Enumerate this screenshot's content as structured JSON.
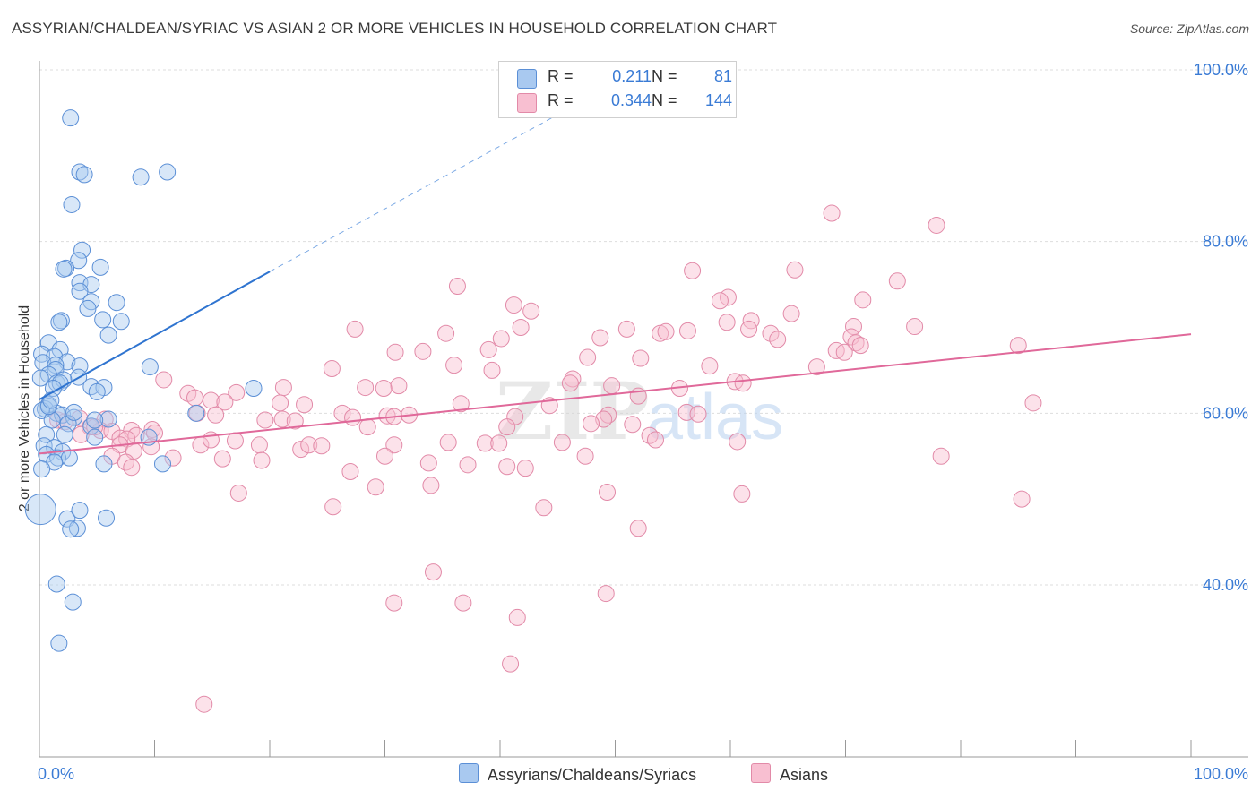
{
  "header": {
    "title": "ASSYRIAN/CHALDEAN/SYRIAC VS ASIAN 2 OR MORE VEHICLES IN HOUSEHOLD CORRELATION CHART",
    "source": "Source: ZipAtlas.com"
  },
  "watermark": {
    "zip": "ZIP",
    "atlas": "atlas"
  },
  "legend": {
    "r_label": "R =",
    "n_label": "N =",
    "series": [
      {
        "r": "0.211",
        "n": "81",
        "color": "#a9c9f0",
        "border": "#5b8fd6"
      },
      {
        "r": "0.344",
        "n": "144",
        "color": "#f8bfd1",
        "border": "#e28aa8"
      }
    ]
  },
  "bottom_legend": [
    {
      "label": "Assyrians/Chaldeans/Syriacs",
      "color": "#a9c9f0",
      "border": "#5b8fd6"
    },
    {
      "label": "Asians",
      "color": "#f8bfd1",
      "border": "#e28aa8"
    }
  ],
  "chart_data": {
    "type": "scatter",
    "title": "ASSYRIAN/CHALDEAN/SYRIAC VS ASIAN 2 OR MORE VEHICLES IN HOUSEHOLD CORRELATION CHART",
    "xlabel": "",
    "ylabel": "2 or more Vehicles in Household",
    "xlim": [
      0,
      100
    ],
    "ylim": [
      20,
      100
    ],
    "x_tick_labels": [
      "0.0%",
      "100.0%"
    ],
    "y_ticks": [
      40,
      60,
      80,
      100
    ],
    "y_tick_labels": [
      "40.0%",
      "60.0%",
      "80.0%",
      "100.0%"
    ],
    "grid": true,
    "legend_position": "top-center",
    "colors": {
      "blue_line": "#2f74d0",
      "pink_line": "#e0699a",
      "tick_label": "#3a7bd5"
    },
    "series": [
      {
        "name": "Assyrians/Chaldeans/Syriacs",
        "r": 0.211,
        "n": 81,
        "trend": {
          "x": [
            0,
            20
          ],
          "y": [
            61.6,
            76.5
          ],
          "dashed_to": [
            47.5,
            96.6
          ]
        },
        "points": [
          [
            2.7,
            94.4
          ],
          [
            3.5,
            88.1
          ],
          [
            11.1,
            88.1
          ],
          [
            3.9,
            87.8
          ],
          [
            8.8,
            87.5
          ],
          [
            2.8,
            84.3
          ],
          [
            3.7,
            79.0
          ],
          [
            3.4,
            77.8
          ],
          [
            2.3,
            76.9
          ],
          [
            2.1,
            76.8
          ],
          [
            5.3,
            77.0
          ],
          [
            3.5,
            75.2
          ],
          [
            4.5,
            75.0
          ],
          [
            3.5,
            74.2
          ],
          [
            4.5,
            73.0
          ],
          [
            6.7,
            72.9
          ],
          [
            4.2,
            72.2
          ],
          [
            5.5,
            70.9
          ],
          [
            7.1,
            70.7
          ],
          [
            1.9,
            70.8
          ],
          [
            1.7,
            70.6
          ],
          [
            6.0,
            69.1
          ],
          [
            0.8,
            68.2
          ],
          [
            1.8,
            67.4
          ],
          [
            0.2,
            66.9
          ],
          [
            1.3,
            66.6
          ],
          [
            0.3,
            65.9
          ],
          [
            2.4,
            66.0
          ],
          [
            1.4,
            65.6
          ],
          [
            3.5,
            65.5
          ],
          [
            1.4,
            65.1
          ],
          [
            0.8,
            64.5
          ],
          [
            3.4,
            64.2
          ],
          [
            0.1,
            64.1
          ],
          [
            1.5,
            63.5
          ],
          [
            2.1,
            63.9
          ],
          [
            1.8,
            63.5
          ],
          [
            1.2,
            62.9
          ],
          [
            4.5,
            63.1
          ],
          [
            5.6,
            63.0
          ],
          [
            5.0,
            62.5
          ],
          [
            9.6,
            65.4
          ],
          [
            18.6,
            62.9
          ],
          [
            0.8,
            61.0
          ],
          [
            0.5,
            60.5
          ],
          [
            1.5,
            60.0
          ],
          [
            0.2,
            60.3
          ],
          [
            2.0,
            59.8
          ],
          [
            3.0,
            59.5
          ],
          [
            1.1,
            59.2
          ],
          [
            2.5,
            58.8
          ],
          [
            4.5,
            58.5
          ],
          [
            6.0,
            59.3
          ],
          [
            4.8,
            59.2
          ],
          [
            2.2,
            57.5
          ],
          [
            4.8,
            57.2
          ],
          [
            9.5,
            57.2
          ],
          [
            13.6,
            60.0
          ],
          [
            0.6,
            57.5
          ],
          [
            0.4,
            56.2
          ],
          [
            1.3,
            56.0
          ],
          [
            2.0,
            55.5
          ],
          [
            0.6,
            55.2
          ],
          [
            1.6,
            54.8
          ],
          [
            2.6,
            54.8
          ],
          [
            1.3,
            54.3
          ],
          [
            5.6,
            54.1
          ],
          [
            10.7,
            54.1
          ],
          [
            0.2,
            53.5
          ],
          [
            0.1,
            48.8
          ],
          [
            2.4,
            47.7
          ],
          [
            5.8,
            47.8
          ],
          [
            3.3,
            46.6
          ],
          [
            2.7,
            46.5
          ],
          [
            3.5,
            48.7
          ],
          [
            1.5,
            40.1
          ],
          [
            2.9,
            38.0
          ],
          [
            1.7,
            33.2
          ],
          [
            0.8,
            60.8
          ],
          [
            3.0,
            60.1
          ],
          [
            1.0,
            61.5
          ]
        ]
      },
      {
        "name": "Asians",
        "r": 0.344,
        "n": 144,
        "trend": {
          "x": [
            0,
            100
          ],
          "y": [
            55.3,
            69.2
          ]
        },
        "points": [
          [
            68.8,
            83.3
          ],
          [
            77.9,
            81.9
          ],
          [
            56.7,
            76.6
          ],
          [
            65.6,
            76.7
          ],
          [
            74.5,
            75.4
          ],
          [
            36.3,
            74.8
          ],
          [
            71.5,
            73.2
          ],
          [
            59.8,
            73.5
          ],
          [
            65.3,
            71.6
          ],
          [
            59.1,
            73.1
          ],
          [
            41.2,
            72.6
          ],
          [
            42.7,
            71.9
          ],
          [
            59.7,
            70.6
          ],
          [
            61.8,
            70.8
          ],
          [
            70.7,
            70.1
          ],
          [
            76.0,
            70.1
          ],
          [
            41.8,
            70.0
          ],
          [
            27.4,
            69.8
          ],
          [
            35.3,
            69.3
          ],
          [
            51.0,
            69.8
          ],
          [
            53.9,
            69.3
          ],
          [
            61.6,
            69.8
          ],
          [
            63.5,
            69.3
          ],
          [
            64.1,
            68.6
          ],
          [
            54.4,
            69.5
          ],
          [
            56.3,
            69.6
          ],
          [
            40.1,
            68.7
          ],
          [
            48.7,
            68.8
          ],
          [
            70.5,
            68.9
          ],
          [
            70.9,
            68.2
          ],
          [
            69.2,
            67.3
          ],
          [
            69.9,
            67.1
          ],
          [
            71.3,
            67.9
          ],
          [
            85.0,
            67.9
          ],
          [
            30.9,
            67.1
          ],
          [
            33.3,
            67.2
          ],
          [
            39.0,
            67.4
          ],
          [
            47.6,
            66.5
          ],
          [
            52.2,
            66.4
          ],
          [
            58.2,
            65.5
          ],
          [
            67.5,
            65.4
          ],
          [
            36.0,
            65.6
          ],
          [
            39.3,
            65.0
          ],
          [
            25.4,
            65.2
          ],
          [
            60.4,
            63.7
          ],
          [
            61.1,
            63.5
          ],
          [
            46.3,
            64.0
          ],
          [
            10.8,
            63.9
          ],
          [
            17.1,
            62.4
          ],
          [
            21.2,
            63.0
          ],
          [
            28.3,
            63.0
          ],
          [
            31.2,
            63.2
          ],
          [
            29.9,
            62.9
          ],
          [
            55.6,
            62.9
          ],
          [
            49.7,
            63.2
          ],
          [
            46.1,
            63.5
          ],
          [
            12.9,
            62.3
          ],
          [
            13.5,
            61.8
          ],
          [
            14.9,
            61.5
          ],
          [
            16.1,
            61.3
          ],
          [
            20.9,
            61.2
          ],
          [
            23.0,
            61.0
          ],
          [
            36.6,
            61.1
          ],
          [
            52.0,
            62.0
          ],
          [
            44.3,
            60.9
          ],
          [
            56.2,
            60.1
          ],
          [
            57.2,
            59.9
          ],
          [
            13.7,
            60.0
          ],
          [
            15.3,
            59.8
          ],
          [
            19.6,
            59.2
          ],
          [
            21.1,
            59.3
          ],
          [
            22.2,
            59.1
          ],
          [
            26.3,
            60.0
          ],
          [
            27.2,
            59.5
          ],
          [
            28.5,
            58.4
          ],
          [
            30.2,
            59.7
          ],
          [
            30.8,
            59.6
          ],
          [
            32.1,
            59.8
          ],
          [
            41.3,
            59.6
          ],
          [
            40.6,
            58.4
          ],
          [
            49.4,
            59.8
          ],
          [
            49.0,
            59.3
          ],
          [
            47.9,
            58.8
          ],
          [
            51.5,
            58.7
          ],
          [
            53.0,
            57.4
          ],
          [
            53.5,
            56.9
          ],
          [
            60.6,
            56.7
          ],
          [
            86.3,
            61.2
          ],
          [
            3.5,
            59.4
          ],
          [
            5.7,
            59.3
          ],
          [
            1.6,
            59.2
          ],
          [
            2.2,
            59.0
          ],
          [
            4.4,
            58.4
          ],
          [
            5.3,
            58.0
          ],
          [
            6.3,
            57.9
          ],
          [
            3.6,
            57.5
          ],
          [
            4.8,
            58.4
          ],
          [
            8.0,
            58.0
          ],
          [
            9.8,
            58.1
          ],
          [
            8.4,
            57.4
          ],
          [
            10.0,
            57.7
          ],
          [
            7.0,
            57.1
          ],
          [
            7.6,
            57.0
          ],
          [
            14.0,
            56.3
          ],
          [
            14.9,
            56.9
          ],
          [
            17.0,
            56.8
          ],
          [
            19.1,
            56.3
          ],
          [
            22.7,
            55.8
          ],
          [
            23.4,
            56.3
          ],
          [
            24.5,
            56.2
          ],
          [
            30.8,
            56.3
          ],
          [
            35.5,
            56.6
          ],
          [
            38.7,
            56.5
          ],
          [
            39.9,
            56.5
          ],
          [
            45.4,
            56.6
          ],
          [
            7.0,
            56.3
          ],
          [
            9.7,
            56.1
          ],
          [
            8.2,
            55.6
          ],
          [
            11.6,
            54.8
          ],
          [
            15.9,
            54.7
          ],
          [
            19.3,
            54.5
          ],
          [
            30.0,
            55.0
          ],
          [
            33.8,
            54.2
          ],
          [
            37.2,
            54.0
          ],
          [
            40.6,
            53.8
          ],
          [
            47.4,
            55.0
          ],
          [
            6.3,
            55.0
          ],
          [
            7.5,
            54.3
          ],
          [
            8.0,
            53.7
          ],
          [
            27.0,
            53.2
          ],
          [
            29.2,
            51.4
          ],
          [
            34.0,
            51.6
          ],
          [
            42.2,
            53.6
          ],
          [
            78.3,
            55.0
          ],
          [
            17.3,
            50.7
          ],
          [
            25.5,
            49.1
          ],
          [
            43.8,
            49.0
          ],
          [
            49.3,
            50.8
          ],
          [
            61.0,
            50.6
          ],
          [
            85.3,
            50.0
          ],
          [
            52.0,
            46.6
          ],
          [
            34.2,
            41.5
          ],
          [
            49.2,
            39.0
          ],
          [
            30.8,
            37.9
          ],
          [
            36.8,
            37.9
          ],
          [
            41.5,
            36.2
          ],
          [
            40.9,
            30.8
          ],
          [
            14.3,
            26.1
          ]
        ]
      }
    ]
  }
}
